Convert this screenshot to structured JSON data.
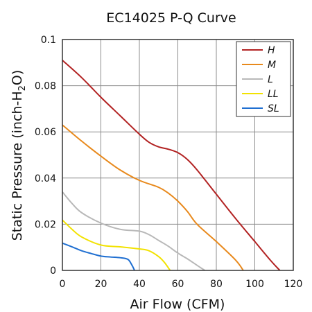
{
  "chart_data": {
    "type": "line",
    "title": "EC14025 P-Q Curve",
    "xlabel": "Air Flow (CFM)",
    "ylabel": {
      "pre": "Static Pressure (inch-H",
      "sub": "2",
      "post": "O)"
    },
    "xlim": [
      0,
      120
    ],
    "ylim": [
      0,
      0.1
    ],
    "x_ticks": [
      0,
      20,
      40,
      60,
      80,
      100,
      120
    ],
    "y_ticks": [
      0,
      0.02,
      0.04,
      0.06,
      0.08,
      0.1
    ],
    "x_tick_labels": [
      "0",
      "20",
      "40",
      "60",
      "80",
      "100",
      "120"
    ],
    "y_tick_labels": [
      "0",
      "0.02",
      "0.04",
      "0.06",
      "0.08",
      "0.1"
    ],
    "grid": true,
    "legend_position": "top-right",
    "series": [
      {
        "name": "H",
        "color": "#b22222",
        "x": [
          0,
          10,
          20,
          30,
          40,
          45,
          50,
          55,
          60,
          65,
          70,
          80,
          90,
          100,
          108,
          113
        ],
        "y": [
          0.091,
          0.0835,
          0.075,
          0.067,
          0.059,
          0.0555,
          0.0535,
          0.0525,
          0.051,
          0.048,
          0.0435,
          0.033,
          0.0225,
          0.0125,
          0.0045,
          0
        ]
      },
      {
        "name": "M",
        "color": "#e8891c",
        "x": [
          0,
          10,
          20,
          30,
          40,
          50,
          55,
          60,
          65,
          70,
          80,
          90,
          94
        ],
        "y": [
          0.063,
          0.056,
          0.0495,
          0.0435,
          0.039,
          0.036,
          0.0335,
          0.03,
          0.0255,
          0.02,
          0.0125,
          0.0045,
          0
        ]
      },
      {
        "name": "L",
        "color": "#b8b8b8",
        "x": [
          0,
          5,
          10,
          20,
          30,
          40,
          45,
          50,
          55,
          60,
          65,
          70,
          74
        ],
        "y": [
          0.034,
          0.029,
          0.025,
          0.0205,
          0.0178,
          0.017,
          0.0155,
          0.013,
          0.0105,
          0.0075,
          0.005,
          0.0022,
          0
        ]
      },
      {
        "name": "LL",
        "color": "#f2e200",
        "x": [
          0,
          5,
          10,
          20,
          30,
          40,
          45,
          50,
          53,
          56
        ],
        "y": [
          0.0218,
          0.0178,
          0.0145,
          0.011,
          0.0102,
          0.0093,
          0.0085,
          0.006,
          0.0035,
          0
        ]
      },
      {
        "name": "SL",
        "color": "#1f6fd1",
        "x": [
          0,
          5,
          10,
          15,
          20,
          25,
          30,
          34,
          36,
          37.5
        ],
        "y": [
          0.0118,
          0.0102,
          0.0085,
          0.0073,
          0.0062,
          0.0058,
          0.0055,
          0.0048,
          0.0025,
          0
        ]
      }
    ]
  }
}
